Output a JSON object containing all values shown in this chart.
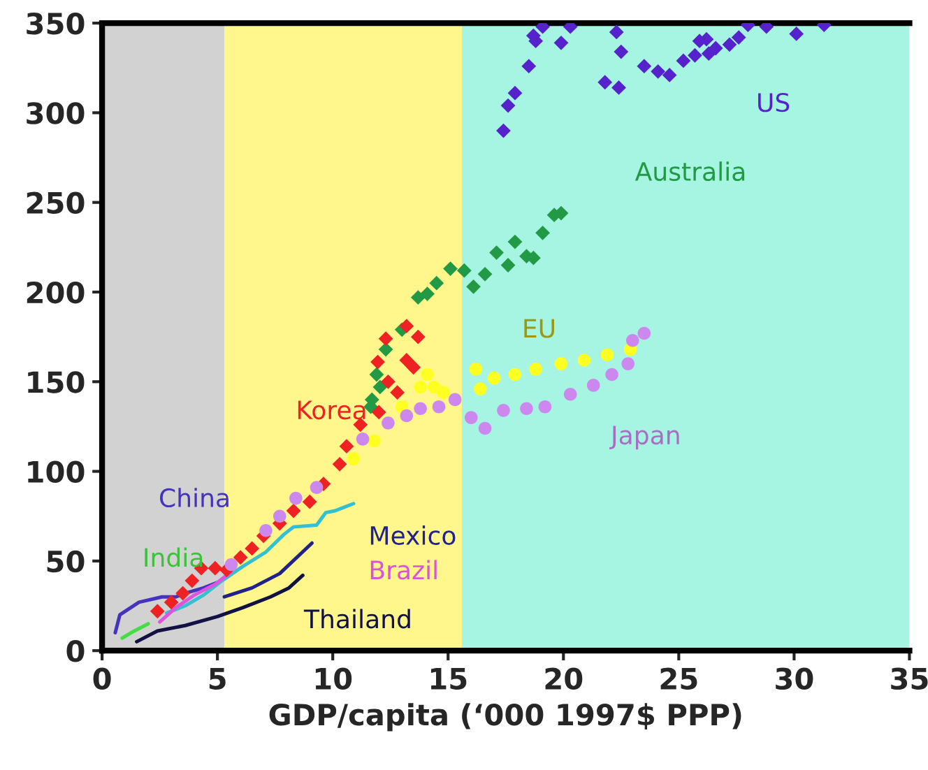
{
  "chart_data": {
    "type": "scatter",
    "xlabel": "GDP/capita (‘000 1997$ PPP)",
    "xlim": [
      0,
      35
    ],
    "xticks": [
      0,
      5,
      10,
      15,
      20,
      25,
      30,
      35
    ],
    "ylim": [
      0,
      350
    ],
    "yticks": [
      0,
      50,
      100,
      150,
      200,
      250,
      300,
      350
    ],
    "grid": false,
    "legend": false,
    "bands": [
      {
        "axis": "x",
        "from": 0,
        "to": 5.3,
        "color": "#d2d2d2"
      },
      {
        "axis": "x",
        "from": 5.3,
        "to": 15.6,
        "color": "#fff78c"
      },
      {
        "axis": "x",
        "from": 15.6,
        "to": 35,
        "color": "#a6f5e2"
      }
    ],
    "series": [
      {
        "name": "US",
        "marker": "diamond",
        "color": "#5522cc",
        "x": [
          17.4,
          17.6,
          17.9,
          18.5,
          18.7,
          18.8,
          19.1,
          19.9,
          20.3,
          21.8,
          22.3,
          22.4,
          22.5,
          23.5,
          24.1,
          24.6,
          25.2,
          25.7,
          25.9,
          26.2,
          26.3,
          26.6,
          27.2,
          27.6,
          28.0,
          28.8,
          30.1,
          31.3
        ],
        "values": [
          290,
          304,
          311,
          326,
          343,
          340,
          348,
          339,
          348,
          317,
          345,
          314,
          334,
          326,
          323,
          321,
          329,
          332,
          340,
          341,
          333,
          336,
          338,
          342,
          349,
          348,
          344,
          349
        ]
      },
      {
        "name": "Australia",
        "marker": "diamond",
        "color": "#229944",
        "x": [
          11.65,
          11.7,
          11.9,
          12.05,
          12.3,
          13.0,
          13.7,
          14.1,
          14.5,
          15.1,
          15.7,
          16.1,
          16.6,
          17.1,
          17.6,
          17.9,
          18.4,
          18.7,
          19.1,
          19.6,
          19.9
        ],
        "values": [
          136,
          140,
          154,
          147,
          168,
          179,
          197,
          199,
          205,
          213,
          212,
          203,
          210,
          222,
          215,
          228,
          220,
          219,
          233,
          243,
          244
        ]
      },
      {
        "name": "Korea",
        "marker": "diamond",
        "color": "#ee2222",
        "x": [
          2.4,
          3.0,
          3.5,
          3.9,
          4.3,
          4.9,
          5.4,
          6.0,
          6.5,
          7.0,
          7.7,
          8.3,
          9.0,
          9.6,
          10.3,
          10.6,
          11.2,
          11.95,
          12.0,
          12.3,
          12.4,
          12.8,
          13.2,
          13.2,
          13.5,
          13.7
        ],
        "values": [
          22,
          27,
          32,
          39,
          46,
          46,
          45,
          52,
          57,
          64,
          71,
          78,
          83,
          93,
          104,
          114,
          126,
          161,
          133,
          174,
          150,
          144,
          181,
          162,
          158,
          175
        ]
      },
      {
        "name": "EU",
        "marker": "circle",
        "color": "#ffff22",
        "x": [
          10.9,
          11.8,
          12.4,
          13.0,
          13.8,
          14.0,
          14.1,
          14.4,
          14.8,
          15.2,
          16.2,
          16.4,
          17.0,
          17.9,
          18.8,
          19.9,
          20.9,
          21.9,
          22.9
        ],
        "values": [
          107,
          117,
          null,
          136,
          147,
          null,
          154,
          147,
          144,
          null,
          157,
          146,
          152,
          154,
          157,
          160,
          162,
          165,
          168
        ]
      },
      {
        "name": "Japan",
        "marker": "circle",
        "color": "#cc88ee",
        "x": [
          5.6,
          7.1,
          7.7,
          8.4,
          9.3,
          11.3,
          12.4,
          13.2,
          13.8,
          14.6,
          15.3,
          16.0,
          16.6,
          17.4,
          18.4,
          19.2,
          20.3,
          21.3,
          22.1,
          22.8,
          23.0,
          23.5
        ],
        "values": [
          48,
          67,
          75,
          85,
          91,
          118,
          127,
          131,
          135,
          136,
          140,
          130,
          124,
          134,
          135,
          136,
          143,
          148,
          154,
          160,
          173,
          177
        ]
      },
      {
        "name": "China",
        "type": "line",
        "marker": "none",
        "color": "#4433bb",
        "x": [
          0.57,
          0.77,
          1.6,
          2.6,
          3.2,
          3.6,
          4.4,
          5.0
        ],
        "values": [
          10,
          20,
          27,
          30,
          30,
          32,
          35,
          38
        ]
      },
      {
        "name": "India",
        "type": "line",
        "marker": "none",
        "color": "#44dd44",
        "x": [
          0.87,
          1.4,
          2.0
        ],
        "values": [
          7,
          11,
          15
        ]
      },
      {
        "type": "line",
        "marker": "none",
        "color": "#33c0d0",
        "x": [
          2.8,
          3.6,
          4.4,
          5.2,
          6.1,
          7.1,
          7.9,
          8.3,
          9.3,
          9.7,
          10.1,
          10.5,
          10.9
        ],
        "values": [
          21,
          25,
          31,
          39,
          47,
          55,
          65,
          69,
          70,
          77,
          78,
          80,
          82
        ]
      },
      {
        "name": "Mexico",
        "type": "line",
        "marker": "none",
        "color": "#222288",
        "x": [
          5.3,
          6.5,
          7.7,
          9.1
        ],
        "values": [
          30,
          35,
          43,
          60
        ]
      },
      {
        "name": "Brazil",
        "type": "line",
        "marker": "none",
        "color": "#dd55dd",
        "x": [
          2.5,
          3.2,
          4.0,
          4.9,
          5.6
        ],
        "values": [
          16,
          24,
          31,
          37,
          44
        ]
      },
      {
        "name": "Thailand",
        "type": "line",
        "marker": "none",
        "color": "#111144",
        "x": [
          1.5,
          2.4,
          3.6,
          5.0,
          6.1,
          7.3,
          8.1,
          8.7
        ],
        "values": [
          5,
          11,
          14,
          19,
          24,
          30,
          35,
          42
        ]
      }
    ]
  }
}
